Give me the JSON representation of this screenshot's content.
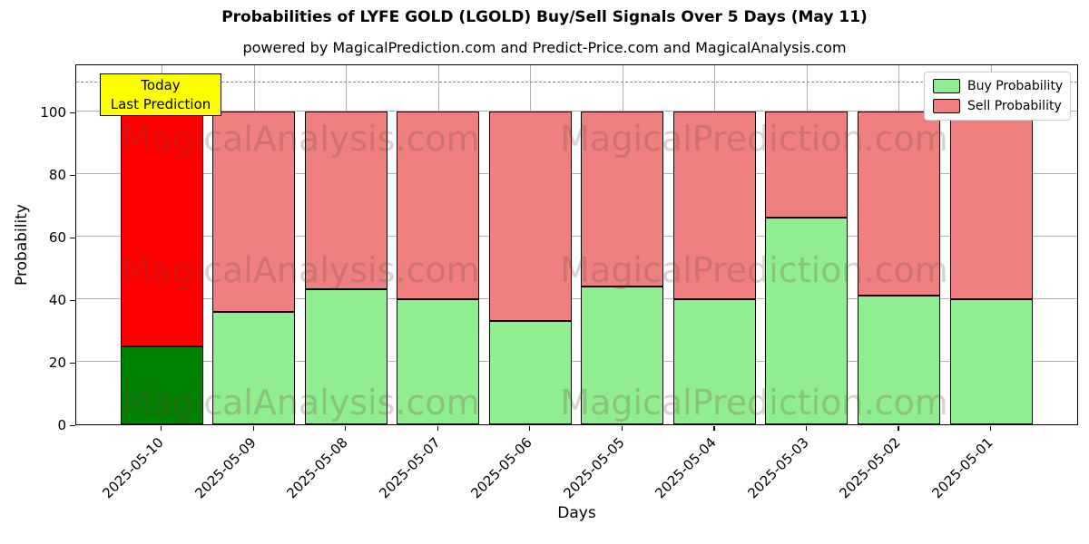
{
  "title": "Probabilities of LYFE GOLD (LGOLD) Buy/Sell Signals Over 5 Days (May 11)",
  "subtitle": "powered by MagicalPrediction.com and Predict-Price.com and MagicalAnalysis.com",
  "annotation": {
    "line1": "Today",
    "line2": "Last Prediction"
  },
  "legend": [
    {
      "label": "Buy Probability",
      "color": "#90ee90"
    },
    {
      "label": "Sell Probability",
      "color": "#f08080"
    }
  ],
  "watermarks": [
    "MagicalAnalysis.com",
    "MagicalPrediction.com"
  ],
  "colors": {
    "buy": "#90ee90",
    "sell": "#f08080",
    "today_buy": "#008000",
    "today_sell": "#ff0000",
    "annotation_bg": "#ffff00",
    "grid": "#b0b0b0",
    "dashed_line": "#8a8a8a"
  },
  "chart_data": {
    "type": "bar",
    "stacked": true,
    "title": "Probabilities of LYFE GOLD (LGOLD) Buy/Sell Signals Over 5 Days (May 11)",
    "xlabel": "Days",
    "ylabel": "Probability",
    "categories": [
      "2025-05-10",
      "2025-05-09",
      "2025-05-08",
      "2025-05-07",
      "2025-05-06",
      "2025-05-05",
      "2025-05-04",
      "2025-05-03",
      "2025-05-02",
      "2025-05-01"
    ],
    "series": [
      {
        "name": "Buy Probability",
        "values": [
          25,
          36,
          43,
          40,
          33,
          44,
          40,
          66,
          41,
          40
        ]
      },
      {
        "name": "Sell Probability",
        "values": [
          75,
          64,
          57,
          60,
          67,
          56,
          60,
          34,
          59,
          60
        ]
      }
    ],
    "today_index": 0,
    "yticks": [
      0,
      20,
      40,
      60,
      80,
      100
    ],
    "ylim": [
      0,
      115.2
    ],
    "dashed_line_y": 110,
    "grid": true,
    "legend_position": "upper right"
  }
}
